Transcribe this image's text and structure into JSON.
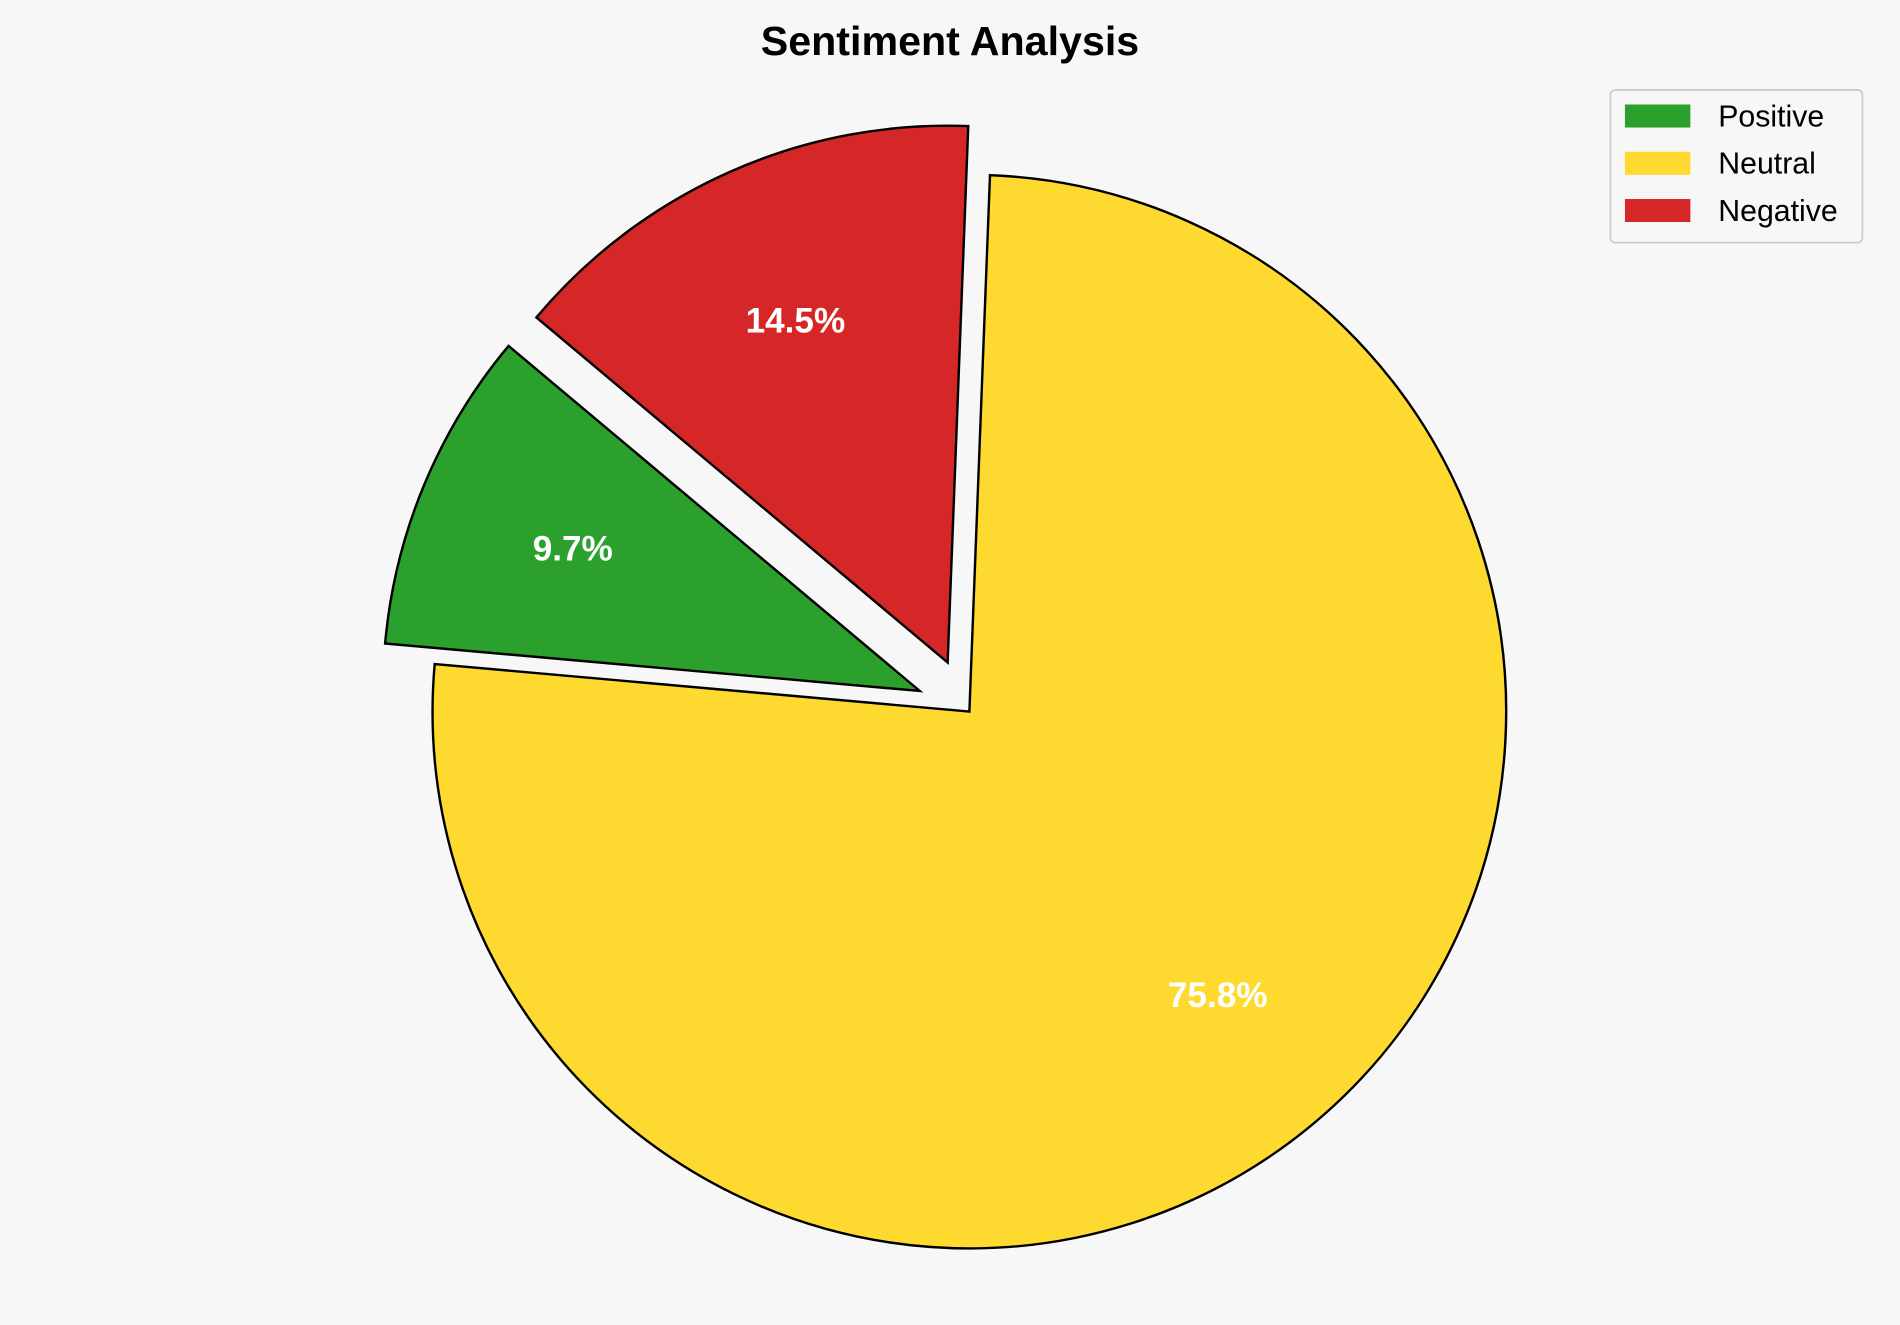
{
  "chart_data": {
    "type": "pie",
    "title": "Sentiment Analysis",
    "categories": [
      "Positive",
      "Neutral",
      "Negative"
    ],
    "values": [
      9.7,
      75.8,
      14.5
    ],
    "labels": [
      "9.7%",
      "75.8%",
      "14.5%"
    ],
    "colors": [
      "#2ca02c",
      "#fed930",
      "#d62728"
    ],
    "exploded": [
      true,
      false,
      true
    ],
    "start_angle_deg": 140,
    "direction": "counterclockwise",
    "legend": {
      "placement": "top-right",
      "entries": [
        "Positive",
        "Neutral",
        "Negative"
      ]
    }
  }
}
